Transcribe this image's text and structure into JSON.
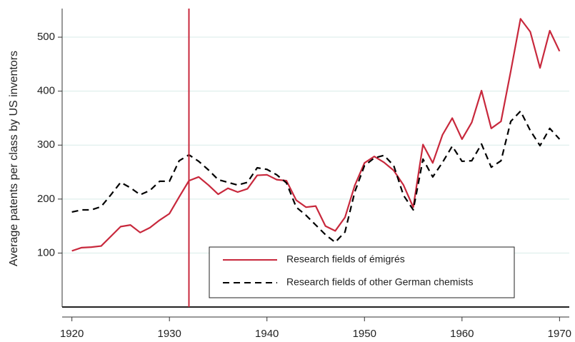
{
  "chart_data": {
    "type": "line",
    "y_label": "Average patents per class by US inventors",
    "x": [
      1920,
      1921,
      1922,
      1923,
      1924,
      1925,
      1926,
      1927,
      1928,
      1929,
      1930,
      1931,
      1932,
      1933,
      1934,
      1935,
      1936,
      1937,
      1938,
      1939,
      1940,
      1941,
      1942,
      1943,
      1944,
      1945,
      1946,
      1947,
      1948,
      1949,
      1950,
      1951,
      1952,
      1953,
      1954,
      1955,
      1956,
      1957,
      1958,
      1959,
      1960,
      1961,
      1962,
      1963,
      1964,
      1965,
      1966,
      1967,
      1968,
      1969,
      1970
    ],
    "series": [
      {
        "name": "Research fields of émigrés",
        "color": "#c8283c",
        "dash": false,
        "values": [
          104,
          110,
          111,
          113,
          131,
          149,
          152,
          138,
          147,
          161,
          173,
          204,
          234,
          241,
          226,
          209,
          220,
          213,
          219,
          244,
          245,
          236,
          234,
          198,
          185,
          187,
          150,
          141,
          166,
          225,
          267,
          279,
          268,
          253,
          226,
          185,
          301,
          267,
          319,
          350,
          311,
          342,
          401,
          331,
          344,
          437,
          534,
          510,
          443,
          512,
          474
        ]
      },
      {
        "name": "Research fields of other German chemists",
        "color": "#000000",
        "dash": true,
        "values": [
          176,
          180,
          180,
          186,
          208,
          231,
          221,
          208,
          216,
          233,
          233,
          271,
          282,
          270,
          254,
          236,
          231,
          226,
          231,
          258,
          255,
          245,
          230,
          185,
          170,
          152,
          134,
          120,
          139,
          213,
          262,
          276,
          281,
          262,
          207,
          180,
          274,
          241,
          268,
          298,
          270,
          271,
          302,
          259,
          271,
          344,
          363,
          327,
          299,
          331,
          311
        ]
      }
    ],
    "xlim": [
      1919,
      1971
    ],
    "ylim": [
      0,
      553
    ],
    "xticks": [
      1920,
      1930,
      1940,
      1950,
      1960,
      1970
    ],
    "yticks": [
      100,
      200,
      300,
      400,
      500
    ],
    "grid": true,
    "vline": 1932,
    "vline_color": "#c8283c"
  }
}
